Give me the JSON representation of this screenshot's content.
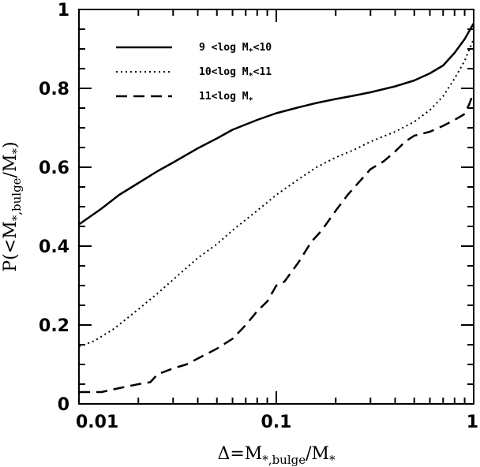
{
  "chart_data": {
    "type": "line",
    "xscale": "log",
    "xlim": [
      0.01,
      1
    ],
    "ylim": [
      0,
      1
    ],
    "x_ticks": [
      {
        "value": 0.01,
        "label": "0.01"
      },
      {
        "value": 0.1,
        "label": "0.1"
      },
      {
        "value": 1,
        "label": "1"
      }
    ],
    "y_ticks": [
      {
        "value": 0,
        "label": "0"
      },
      {
        "value": 0.2,
        "label": "0.2"
      },
      {
        "value": 0.4,
        "label": "0.4"
      },
      {
        "value": 0.6,
        "label": "0.6"
      },
      {
        "value": 0.8,
        "label": "0.8"
      },
      {
        "value": 1,
        "label": "1"
      }
    ],
    "xlabel": {
      "prefix": "Δ=M",
      "sub1": "*,bulge",
      "mid": "/M",
      "sub2": "*"
    },
    "ylabel": {
      "prefix": "P(<M",
      "sub1": "*,bulge",
      "mid": "/M",
      "sub2": "*",
      "suffix": ")"
    },
    "legend_position": "top-left",
    "series": [
      {
        "name": {
          "pre": "9 <log M",
          "sub": "*",
          "post": "<10"
        },
        "style": "solid",
        "x": [
          0.01,
          0.013,
          0.016,
          0.02,
          0.025,
          0.03,
          0.04,
          0.05,
          0.06,
          0.08,
          0.1,
          0.13,
          0.16,
          0.2,
          0.25,
          0.3,
          0.4,
          0.5,
          0.6,
          0.7,
          0.8,
          0.9,
          1.0
        ],
        "y": [
          0.455,
          0.495,
          0.53,
          0.56,
          0.59,
          0.612,
          0.648,
          0.673,
          0.695,
          0.72,
          0.737,
          0.752,
          0.763,
          0.773,
          0.782,
          0.79,
          0.805,
          0.82,
          0.838,
          0.858,
          0.89,
          0.925,
          0.965
        ]
      },
      {
        "name": {
          "pre": "10<log M",
          "sub": "*",
          "post": "<11"
        },
        "style": "dotted",
        "x": [
          0.01,
          0.012,
          0.015,
          0.02,
          0.025,
          0.03,
          0.04,
          0.05,
          0.06,
          0.08,
          0.1,
          0.13,
          0.16,
          0.2,
          0.25,
          0.3,
          0.4,
          0.5,
          0.6,
          0.7,
          0.8,
          0.9,
          1.0
        ],
        "y": [
          0.145,
          0.16,
          0.19,
          0.24,
          0.28,
          0.315,
          0.37,
          0.405,
          0.44,
          0.49,
          0.53,
          0.57,
          0.6,
          0.625,
          0.645,
          0.665,
          0.69,
          0.715,
          0.745,
          0.78,
          0.825,
          0.87,
          0.925
        ]
      },
      {
        "name": {
          "pre": "11<log M",
          "sub": "*",
          "post": ""
        },
        "style": "dashed",
        "x": [
          0.01,
          0.013,
          0.016,
          0.02,
          0.023,
          0.025,
          0.03,
          0.035,
          0.04,
          0.05,
          0.06,
          0.07,
          0.08,
          0.09,
          0.1,
          0.11,
          0.13,
          0.15,
          0.17,
          0.2,
          0.23,
          0.26,
          0.3,
          0.35,
          0.4,
          0.45,
          0.5,
          0.6,
          0.7,
          0.8,
          0.9,
          0.95,
          1.0
        ],
        "y": [
          0.03,
          0.03,
          0.04,
          0.05,
          0.055,
          0.075,
          0.09,
          0.1,
          0.115,
          0.14,
          0.165,
          0.2,
          0.235,
          0.26,
          0.3,
          0.31,
          0.36,
          0.41,
          0.44,
          0.49,
          0.53,
          0.56,
          0.595,
          0.615,
          0.64,
          0.665,
          0.68,
          0.69,
          0.705,
          0.72,
          0.735,
          0.76,
          0.79
        ]
      }
    ]
  }
}
